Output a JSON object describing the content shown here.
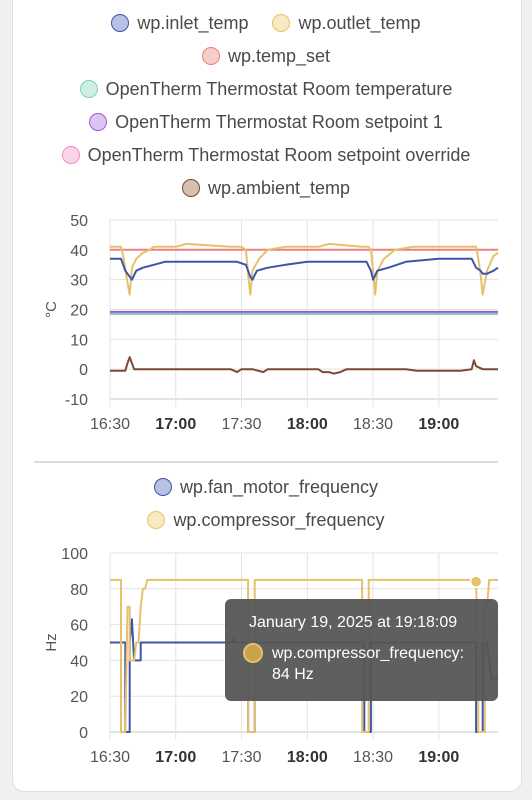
{
  "chart_data": [
    {
      "type": "line",
      "ylabel": "°C",
      "ylim": [
        -10,
        50
      ],
      "yticks": [
        50,
        40,
        30,
        20,
        10,
        0,
        -10
      ],
      "xticks": [
        {
          "t": 0,
          "label": "16:30",
          "bold": false
        },
        {
          "t": 30,
          "label": "17:00",
          "bold": true
        },
        {
          "t": 60,
          "label": "17:30",
          "bold": false
        },
        {
          "t": 90,
          "label": "18:00",
          "bold": true
        },
        {
          "t": 120,
          "label": "18:30",
          "bold": false
        },
        {
          "t": 150,
          "label": "19:00",
          "bold": true
        }
      ],
      "xlim_minutes": [
        0,
        177
      ],
      "series": [
        {
          "name": "wp.temp_set",
          "color": "#e8827a",
          "fill": "#f6cdca",
          "points": [
            [
              0,
              40
            ],
            [
              177,
              40
            ]
          ]
        },
        {
          "name": "wp.outlet_temp",
          "color": "#e6c16a",
          "fill": "#f9e9be",
          "points": [
            [
              0,
              41
            ],
            [
              5,
              41
            ],
            [
              6,
              38
            ],
            [
              8,
              29
            ],
            [
              9,
              25
            ],
            [
              10,
              34
            ],
            [
              12,
              37
            ],
            [
              15,
              39
            ],
            [
              18,
              40
            ],
            [
              20,
              41
            ],
            [
              30,
              41
            ],
            [
              35,
              42
            ],
            [
              55,
              41
            ],
            [
              60,
              41
            ],
            [
              62,
              40
            ],
            [
              63,
              32
            ],
            [
              64,
              25
            ],
            [
              65,
              33
            ],
            [
              68,
              37
            ],
            [
              72,
              40
            ],
            [
              80,
              41
            ],
            [
              95,
              41
            ],
            [
              100,
              42
            ],
            [
              115,
              41
            ],
            [
              118,
              41
            ],
            [
              119,
              40
            ],
            [
              120,
              33
            ],
            [
              121,
              25
            ],
            [
              122,
              33
            ],
            [
              125,
              37
            ],
            [
              130,
              40
            ],
            [
              138,
              41
            ],
            [
              155,
              41
            ],
            [
              160,
              41
            ],
            [
              167,
              41
            ],
            [
              168,
              37
            ],
            [
              169,
              32
            ],
            [
              170,
              25
            ],
            [
              172,
              33
            ],
            [
              175,
              38
            ],
            [
              177,
              39
            ]
          ]
        },
        {
          "name": "wp.inlet_temp",
          "color": "#3d55a8",
          "fill": "#b7c1e3",
          "points": [
            [
              0,
              37
            ],
            [
              5,
              37
            ],
            [
              7,
              33
            ],
            [
              9,
              31
            ],
            [
              10,
              30
            ],
            [
              12,
              33
            ],
            [
              15,
              34
            ],
            [
              20,
              35
            ],
            [
              25,
              36
            ],
            [
              30,
              36
            ],
            [
              45,
              36
            ],
            [
              58,
              36
            ],
            [
              62,
              35
            ],
            [
              64,
              31
            ],
            [
              65,
              30
            ],
            [
              67,
              33
            ],
            [
              72,
              34
            ],
            [
              80,
              35
            ],
            [
              90,
              36
            ],
            [
              112,
              36
            ],
            [
              117,
              36
            ],
            [
              119,
              33
            ],
            [
              120,
              30
            ],
            [
              122,
              33
            ],
            [
              127,
              34
            ],
            [
              135,
              36
            ],
            [
              150,
              37
            ],
            [
              165,
              37
            ],
            [
              167,
              34
            ],
            [
              169,
              33
            ],
            [
              170,
              32
            ],
            [
              172,
              32
            ],
            [
              175,
              33
            ],
            [
              177,
              34
            ]
          ]
        },
        {
          "name": "OpenTherm Thermostat Room temperature",
          "color": "#86ccb8",
          "fill": "#cdeee4",
          "points": [
            [
              0,
              18.5
            ],
            [
              177,
              18.5
            ]
          ]
        },
        {
          "name": "OpenTherm Thermostat Room setpoint 1",
          "color": "#9a5ad8",
          "fill": "#dcc4f3",
          "points": [
            [
              0,
              19.2
            ],
            [
              177,
              19.2
            ]
          ]
        },
        {
          "name": "OpenTherm Thermostat Room setpoint override",
          "color": "#f08ec4",
          "fill": "#fad4e8",
          "points": []
        },
        {
          "name": "wp.ambient_temp",
          "color": "#7a4b32",
          "fill": "#d7c0b1",
          "points": [
            [
              0,
              -0.5
            ],
            [
              7,
              -0.5
            ],
            [
              8,
              2
            ],
            [
              9,
              4
            ],
            [
              10,
              2
            ],
            [
              11,
              0
            ],
            [
              20,
              0
            ],
            [
              55,
              0
            ],
            [
              58,
              -1
            ],
            [
              60,
              0
            ],
            [
              65,
              0
            ],
            [
              70,
              -1
            ],
            [
              72,
              0
            ],
            [
              95,
              0
            ],
            [
              97,
              -1
            ],
            [
              100,
              -1
            ],
            [
              102,
              -1.5
            ],
            [
              105,
              -1
            ],
            [
              108,
              0
            ],
            [
              135,
              0
            ],
            [
              140,
              -0.5
            ],
            [
              160,
              -0.5
            ],
            [
              165,
              0
            ],
            [
              166,
              3
            ],
            [
              167,
              1
            ],
            [
              170,
              0
            ],
            [
              177,
              0
            ]
          ]
        }
      ]
    },
    {
      "type": "line",
      "ylabel": "Hz",
      "ylim": [
        0,
        100
      ],
      "yticks": [
        100,
        80,
        60,
        40,
        20,
        0
      ],
      "xticks": [
        {
          "t": 0,
          "label": "16:30",
          "bold": false
        },
        {
          "t": 30,
          "label": "17:00",
          "bold": true
        },
        {
          "t": 60,
          "label": "17:30",
          "bold": false
        },
        {
          "t": 90,
          "label": "18:00",
          "bold": true
        },
        {
          "t": 120,
          "label": "18:30",
          "bold": false
        },
        {
          "t": 150,
          "label": "19:00",
          "bold": true
        }
      ],
      "xlim_minutes": [
        0,
        177
      ],
      "series": [
        {
          "name": "wp.fan_motor_frequency",
          "color": "#3d55a8",
          "fill": "#b7c1e3",
          "points": [
            [
              0,
              50
            ],
            [
              7,
              50
            ],
            [
              7,
              0
            ],
            [
              9,
              0
            ],
            [
              9,
              50
            ],
            [
              10,
              63
            ],
            [
              11,
              40
            ],
            [
              14,
              40
            ],
            [
              14,
              50
            ],
            [
              56,
              50
            ],
            [
              56,
              52
            ],
            [
              57,
              50
            ],
            [
              60,
              50
            ],
            [
              63,
              50
            ],
            [
              63,
              0
            ],
            [
              66,
              0
            ],
            [
              66,
              50
            ],
            [
              102,
              50
            ],
            [
              106,
              50
            ],
            [
              116,
              50
            ],
            [
              116,
              0
            ],
            [
              119,
              0
            ],
            [
              119,
              50
            ],
            [
              158,
              50
            ],
            [
              167,
              50
            ],
            [
              167,
              0
            ],
            [
              170,
              0
            ],
            [
              170,
              50
            ],
            [
              172,
              50
            ],
            [
              174,
              30
            ],
            [
              177,
              30
            ]
          ]
        },
        {
          "name": "wp.compressor_frequency",
          "color": "#e6c16a",
          "fill": "#f9e9be",
          "points": [
            [
              0,
              85
            ],
            [
              5,
              85
            ],
            [
              5,
              0
            ],
            [
              7,
              0
            ],
            [
              8,
              70
            ],
            [
              9,
              70
            ],
            [
              9,
              40
            ],
            [
              10,
              40
            ],
            [
              11,
              40
            ],
            [
              12,
              50
            ],
            [
              13,
              50
            ],
            [
              14,
              70
            ],
            [
              15,
              80
            ],
            [
              16,
              80
            ],
            [
              17,
              85
            ],
            [
              63,
              85
            ],
            [
              63,
              0
            ],
            [
              66,
              0
            ],
            [
              66,
              85
            ],
            [
              115,
              85
            ],
            [
              115,
              0
            ],
            [
              118,
              0
            ],
            [
              118,
              85
            ],
            [
              167,
              85
            ],
            [
              167,
              84
            ],
            [
              168,
              30
            ],
            [
              168,
              0
            ],
            [
              171,
              0
            ],
            [
              171,
              70
            ],
            [
              172,
              70
            ],
            [
              173,
              85
            ],
            [
              176,
              85
            ],
            [
              177,
              85
            ]
          ]
        }
      ],
      "highlight": {
        "series": "wp.compressor_frequency",
        "t": 167,
        "value": 84
      }
    }
  ],
  "chart1_legend_rows": [
    [
      {
        "name": "wp.inlet_temp",
        "color": "#3d55a8",
        "fill": "#b7c1e3"
      },
      {
        "name": "wp.outlet_temp",
        "color": "#e6c16a",
        "fill": "#f9e9be"
      }
    ],
    [
      {
        "name": "wp.temp_set",
        "color": "#e8827a",
        "fill": "#f6cdca"
      }
    ],
    [
      {
        "name": "OpenTherm Thermostat Room temperature",
        "color": "#86ccb8",
        "fill": "#cdeee4"
      }
    ],
    [
      {
        "name": "OpenTherm Thermostat Room setpoint 1",
        "color": "#9a5ad8",
        "fill": "#dcc4f3"
      }
    ],
    [
      {
        "name": "OpenTherm Thermostat Room setpoint override",
        "color": "#f08ec4",
        "fill": "#fad4e8"
      }
    ],
    [
      {
        "name": "wp.ambient_temp",
        "color": "#7a4b32",
        "fill": "#d7c0b1"
      }
    ]
  ],
  "chart2_legend_rows": [
    [
      {
        "name": "wp.fan_motor_frequency",
        "color": "#3d55a8",
        "fill": "#b7c1e3"
      }
    ],
    [
      {
        "name": "wp.compressor_frequency",
        "color": "#e6c16a",
        "fill": "#f9e9be"
      }
    ]
  ],
  "tooltip": {
    "title": "January 19, 2025 at 19:18:09",
    "series_label": "wp.compressor_frequency:",
    "value_label": "84 Hz",
    "dot_color": "#e6c16a",
    "dot_fill": "#c8a24d"
  }
}
